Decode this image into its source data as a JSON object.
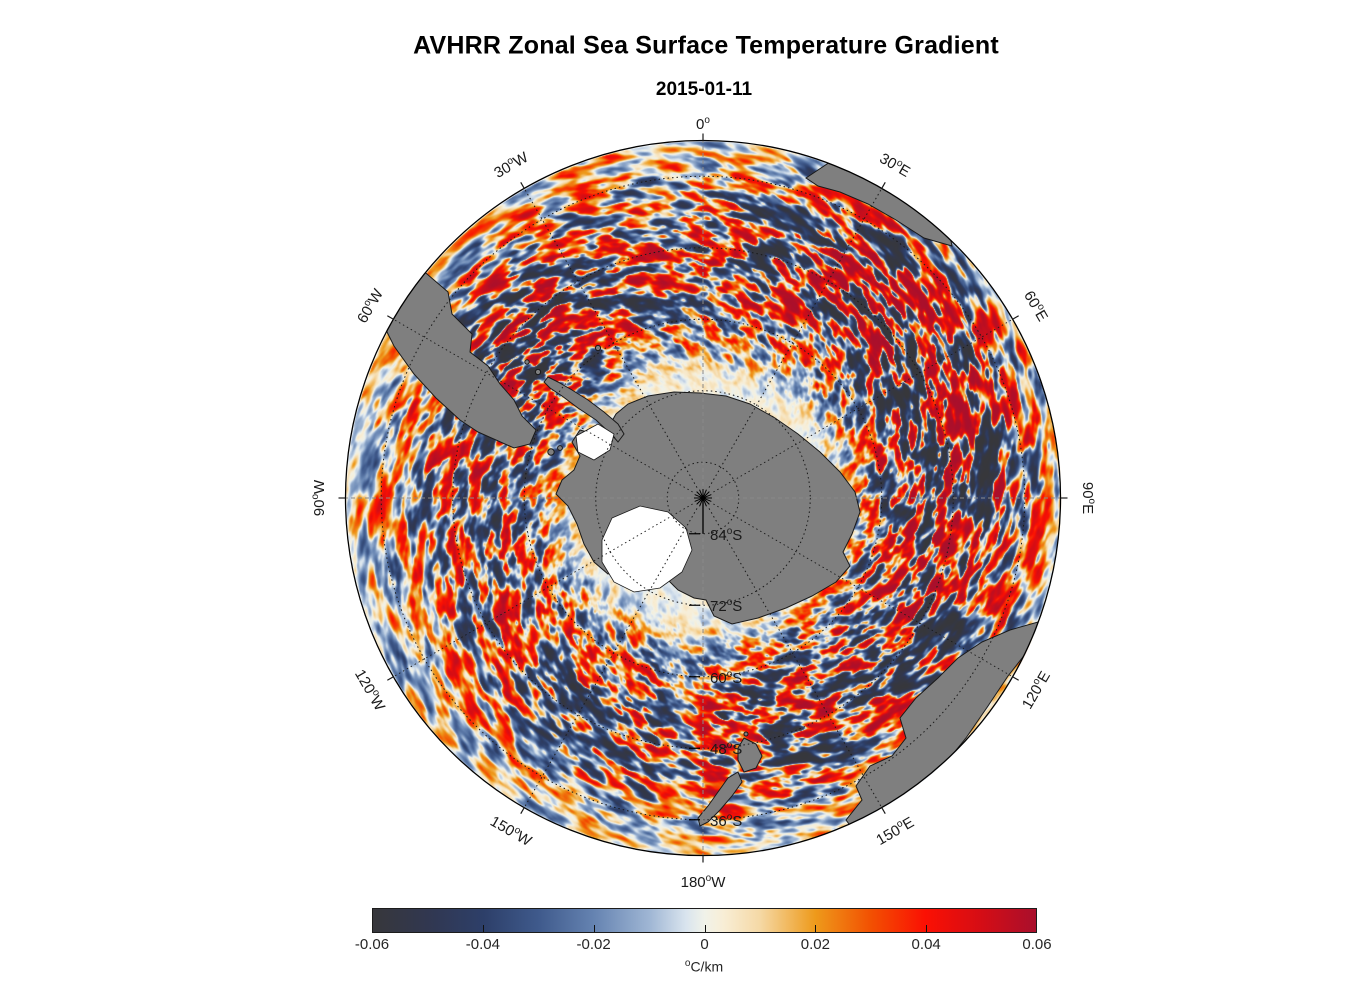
{
  "title": "AVHRR Zonal Sea Surface Temperature Gradient",
  "subtitle": "2015-01-11",
  "map": {
    "meridian_labels": [
      {
        "deg": "0",
        "sym": "o",
        "hem": ""
      },
      {
        "deg": "30",
        "sym": "o",
        "hem": "W"
      },
      {
        "deg": "60",
        "sym": "o",
        "hem": "W"
      },
      {
        "deg": "90",
        "sym": "o",
        "hem": "W"
      },
      {
        "deg": "120",
        "sym": "o",
        "hem": "W"
      },
      {
        "deg": "150",
        "sym": "o",
        "hem": "W"
      },
      {
        "deg": "180",
        "sym": "o",
        "hem": "W"
      },
      {
        "deg": "30",
        "sym": "o",
        "hem": "E"
      },
      {
        "deg": "60",
        "sym": "o",
        "hem": "E"
      },
      {
        "deg": "90",
        "sym": "o",
        "hem": "E"
      },
      {
        "deg": "120",
        "sym": "o",
        "hem": "E"
      },
      {
        "deg": "150",
        "sym": "o",
        "hem": "E"
      }
    ],
    "parallel_labels": [
      {
        "deg": "84",
        "sym": "o",
        "hem": "S"
      },
      {
        "deg": "72",
        "sym": "o",
        "hem": "S"
      },
      {
        "deg": "60",
        "sym": "o",
        "hem": "S"
      },
      {
        "deg": "48",
        "sym": "o",
        "hem": "S"
      },
      {
        "deg": "36",
        "sym": "o",
        "hem": "S"
      }
    ],
    "land_color": "#7f7f7f",
    "ice_color": "#ffffff",
    "coast_color": "#1a1a1a",
    "graticule_color": "#1a1a1a",
    "axis_dash_color": "#8a8a8a"
  },
  "colorbar": {
    "ticks": [
      "-0.06",
      "-0.04",
      "-0.02",
      "0",
      "0.02",
      "0.04",
      "0.06"
    ],
    "unit_sup": "o",
    "unit_text": "C/km"
  },
  "chart_data": {
    "type": "heatmap",
    "title": "AVHRR Zonal Sea Surface Temperature Gradient",
    "subtitle": "2015-01-11",
    "projection": "south polar stereographic (pole-centered, 90S center, ~30S rim)",
    "variable": "zonal sea surface temperature gradient",
    "units": "°C/km",
    "date": "2015-01-11",
    "value_range": [
      -0.06,
      0.06
    ],
    "colorbar_ticks": [
      -0.06,
      -0.04,
      -0.02,
      0,
      0.02,
      0.04,
      0.06
    ],
    "colorbar_label": "°C/km",
    "legend_position": "bottom",
    "grid": "dotted graticule, meridians every 30 deg, parallels every 12 deg",
    "latitude_circles_deg_south": [
      84,
      72,
      60,
      48,
      36
    ],
    "meridian_labels_deg": [
      "0",
      "30W",
      "60W",
      "90W",
      "120W",
      "150W",
      "180W",
      "30E",
      "60E",
      "90E",
      "120E",
      "150E"
    ],
    "land_masses_visible": [
      "Antarctica (gray, with white Ross and Ronne ice shelves)",
      "South America southern tip",
      "southern Africa",
      "Australia with Tasmania",
      "New Zealand"
    ],
    "field_description": "mostly near-zero pale field with strong red/blue mesoscale filaments along the Antarctic Circumpolar Current, strongest in the Agulhas sector (30E-90E) and Drake Passage",
    "colormap_stops": [
      {
        "pos": 0.0,
        "color": "#37373b"
      },
      {
        "pos": 0.083,
        "color": "#313750"
      },
      {
        "pos": 0.167,
        "color": "#2d3f69"
      },
      {
        "pos": 0.25,
        "color": "#3f5a8c"
      },
      {
        "pos": 0.333,
        "color": "#6583b1"
      },
      {
        "pos": 0.417,
        "color": "#9fb6d4"
      },
      {
        "pos": 0.472,
        "color": "#d9e4ee"
      },
      {
        "pos": 0.5,
        "color": "#f0f2e9"
      },
      {
        "pos": 0.528,
        "color": "#f8eed6"
      },
      {
        "pos": 0.583,
        "color": "#f5d9a6"
      },
      {
        "pos": 0.667,
        "color": "#ee9a1b"
      },
      {
        "pos": 0.75,
        "color": "#f25102"
      },
      {
        "pos": 0.833,
        "color": "#fb1003"
      },
      {
        "pos": 0.917,
        "color": "#d50d15"
      },
      {
        "pos": 1.0,
        "color": "#a90f2c"
      }
    ]
  }
}
